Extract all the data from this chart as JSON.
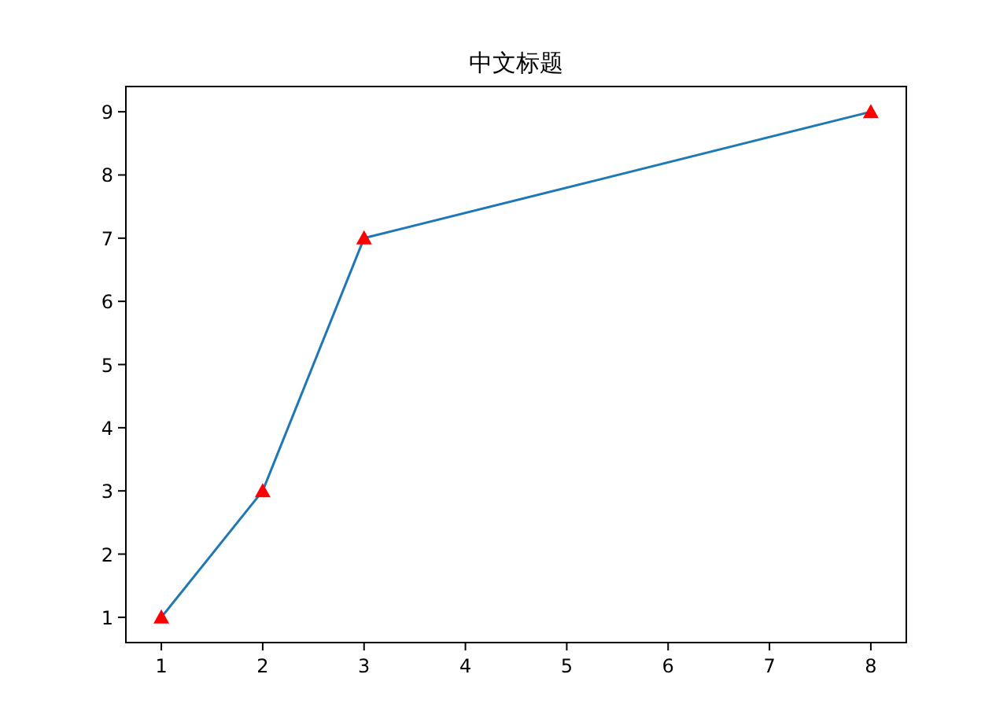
{
  "chart_data": {
    "type": "line",
    "title": "中文标题",
    "x": [
      1,
      2,
      3,
      8
    ],
    "series": [
      {
        "color": "#1f77b4",
        "values": [
          1,
          3,
          7,
          9
        ]
      },
      {
        "type": "scatter",
        "color": "#ff0000",
        "marker": "triangle",
        "values": [
          1,
          3,
          7,
          9
        ]
      }
    ],
    "xlim": [
      0.65,
      8.35
    ],
    "ylim": [
      0.6,
      9.4
    ],
    "xticks": [
      1,
      2,
      3,
      4,
      5,
      6,
      7,
      8
    ],
    "yticks": [
      1,
      2,
      3,
      4,
      5,
      6,
      7,
      8,
      9
    ]
  }
}
